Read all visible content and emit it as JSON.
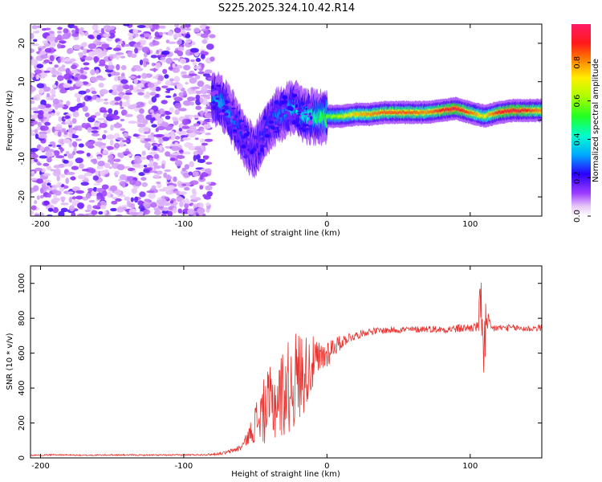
{
  "title": "S225.2025.324.10.42.R14",
  "chart_data": [
    {
      "type": "heatmap",
      "xlabel": "Height of straight line (km)",
      "ylabel": "Frequency (Hz)",
      "xlim": [
        -207,
        150
      ],
      "ylim": [
        -25,
        25
      ],
      "xticks": [
        -200,
        -100,
        0,
        100
      ],
      "yticks": [
        -20,
        -10,
        0,
        10,
        20
      ],
      "colorbar": {
        "label": "Normalized spectral amplitude",
        "ticks": [
          0.0,
          0.2,
          0.4,
          0.6,
          0.8
        ],
        "range": [
          0,
          1
        ]
      },
      "ridge": {
        "x": [
          -80,
          -75,
          -70,
          -65,
          -60,
          -55,
          -50,
          -45,
          -40,
          -35,
          -30,
          -25,
          -22,
          -20,
          -15,
          -10,
          -5,
          0,
          10,
          20,
          30,
          40,
          50,
          60,
          70,
          80,
          90,
          100,
          110,
          120,
          130,
          140,
          150
        ],
        "y": [
          6,
          5,
          3,
          0,
          -3,
          -7,
          -8,
          -4,
          -1,
          1,
          2,
          3,
          3.5,
          2,
          1,
          1,
          0.5,
          1,
          1,
          1.5,
          1.5,
          2,
          2,
          2,
          2,
          2.5,
          3,
          2,
          1,
          2,
          2.5,
          2.5,
          2.5
        ],
        "amplitude": [
          0.3,
          0.35,
          0.35,
          0.3,
          0.25,
          0.2,
          0.2,
          0.25,
          0.25,
          0.3,
          0.3,
          0.35,
          0.4,
          0.4,
          0.4,
          0.45,
          0.5,
          0.55,
          0.65,
          0.75,
          0.8,
          0.85,
          0.85,
          0.85,
          0.8,
          0.9,
          0.95,
          0.85,
          0.7,
          0.9,
          0.95,
          0.9,
          0.8
        ]
      },
      "noise_region_x": [
        -207,
        -80
      ]
    },
    {
      "type": "line",
      "xlabel": "Height of straight line (km)",
      "ylabel": "SNR (10 * v/v)",
      "xlim": [
        -207,
        150
      ],
      "ylim": [
        0,
        1100
      ],
      "xticks": [
        -200,
        -100,
        0,
        100
      ],
      "yticks": [
        0,
        200,
        400,
        600,
        800,
        1000
      ],
      "line_color": "#e8322e",
      "series": [
        {
          "name": "SNR",
          "x": [
            -207,
            -190,
            -170,
            -150,
            -130,
            -110,
            -90,
            -80,
            -70,
            -60,
            -55,
            -50,
            -45,
            -40,
            -35,
            -30,
            -25,
            -20,
            -15,
            -10,
            -5,
            0,
            5,
            10,
            15,
            20,
            25,
            30,
            40,
            50,
            60,
            70,
            80,
            90,
            100,
            105,
            108,
            110,
            112,
            115,
            120,
            130,
            140,
            150
          ],
          "y": [
            15,
            18,
            15,
            17,
            16,
            16,
            18,
            20,
            30,
            60,
            120,
            200,
            260,
            300,
            330,
            380,
            420,
            470,
            500,
            540,
            560,
            600,
            640,
            660,
            690,
            700,
            715,
            725,
            730,
            735,
            735,
            740,
            735,
            740,
            745,
            750,
            880,
            640,
            760,
            740,
            745,
            745,
            740,
            745
          ],
          "jitter": [
            4,
            4,
            4,
            4,
            4,
            4,
            5,
            6,
            10,
            20,
            40,
            120,
            180,
            220,
            240,
            260,
            280,
            280,
            220,
            160,
            110,
            90,
            60,
            40,
            30,
            25,
            20,
            20,
            20,
            20,
            20,
            20,
            20,
            25,
            25,
            30,
            250,
            300,
            80,
            25,
            20,
            20,
            20,
            20
          ]
        }
      ]
    }
  ]
}
